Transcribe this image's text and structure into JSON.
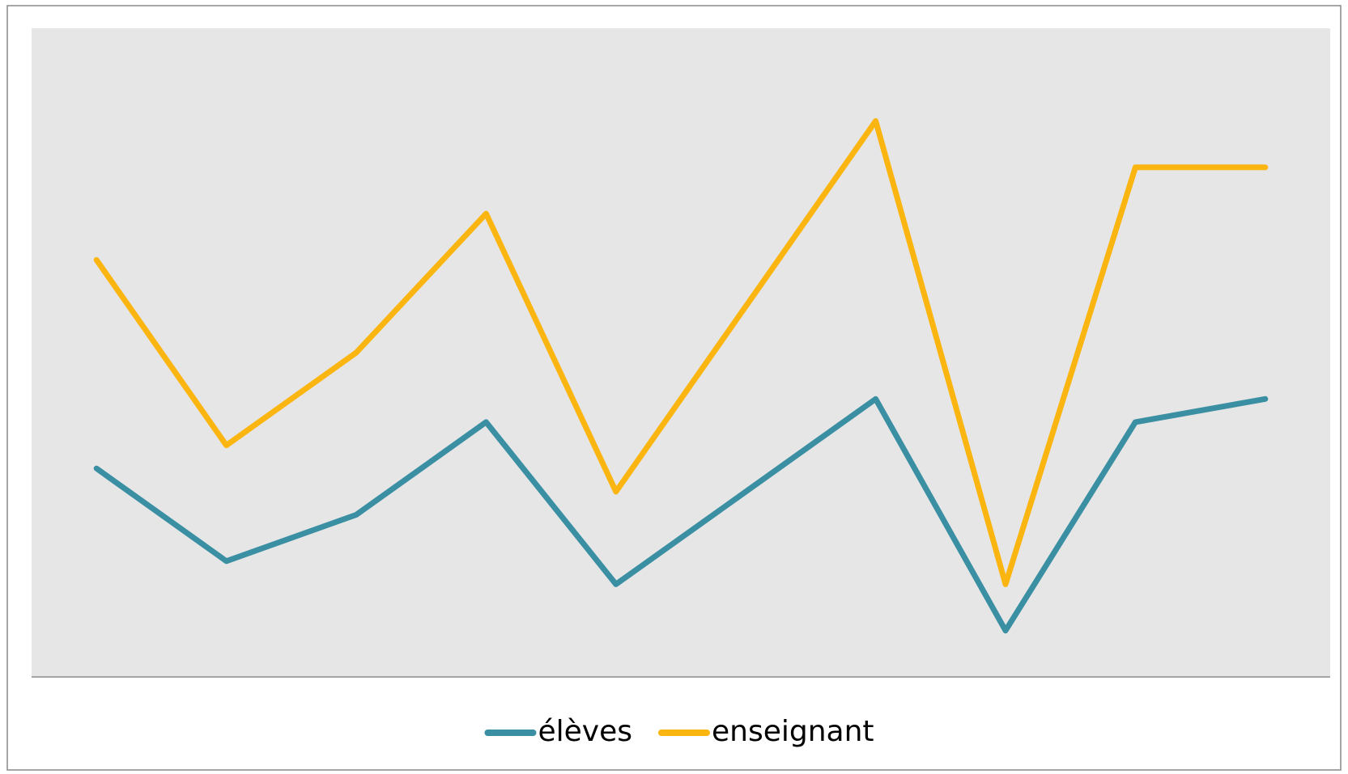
{
  "chart_data": {
    "type": "line",
    "categories": [
      null,
      null,
      null,
      null,
      null,
      null,
      null,
      null,
      null,
      null
    ],
    "series": [
      {
        "name": "élèves",
        "color": "#3a8fa3",
        "values": [
          4.5,
          2.5,
          3.5,
          5.5,
          2,
          4,
          6,
          1,
          5.5,
          6
        ]
      },
      {
        "name": "enseignant",
        "color": "#fbb511",
        "values": [
          9,
          5,
          7,
          10,
          4,
          8,
          12,
          2,
          11,
          11
        ]
      }
    ],
    "ylim": [
      0,
      14
    ],
    "legend": "bottom"
  }
}
